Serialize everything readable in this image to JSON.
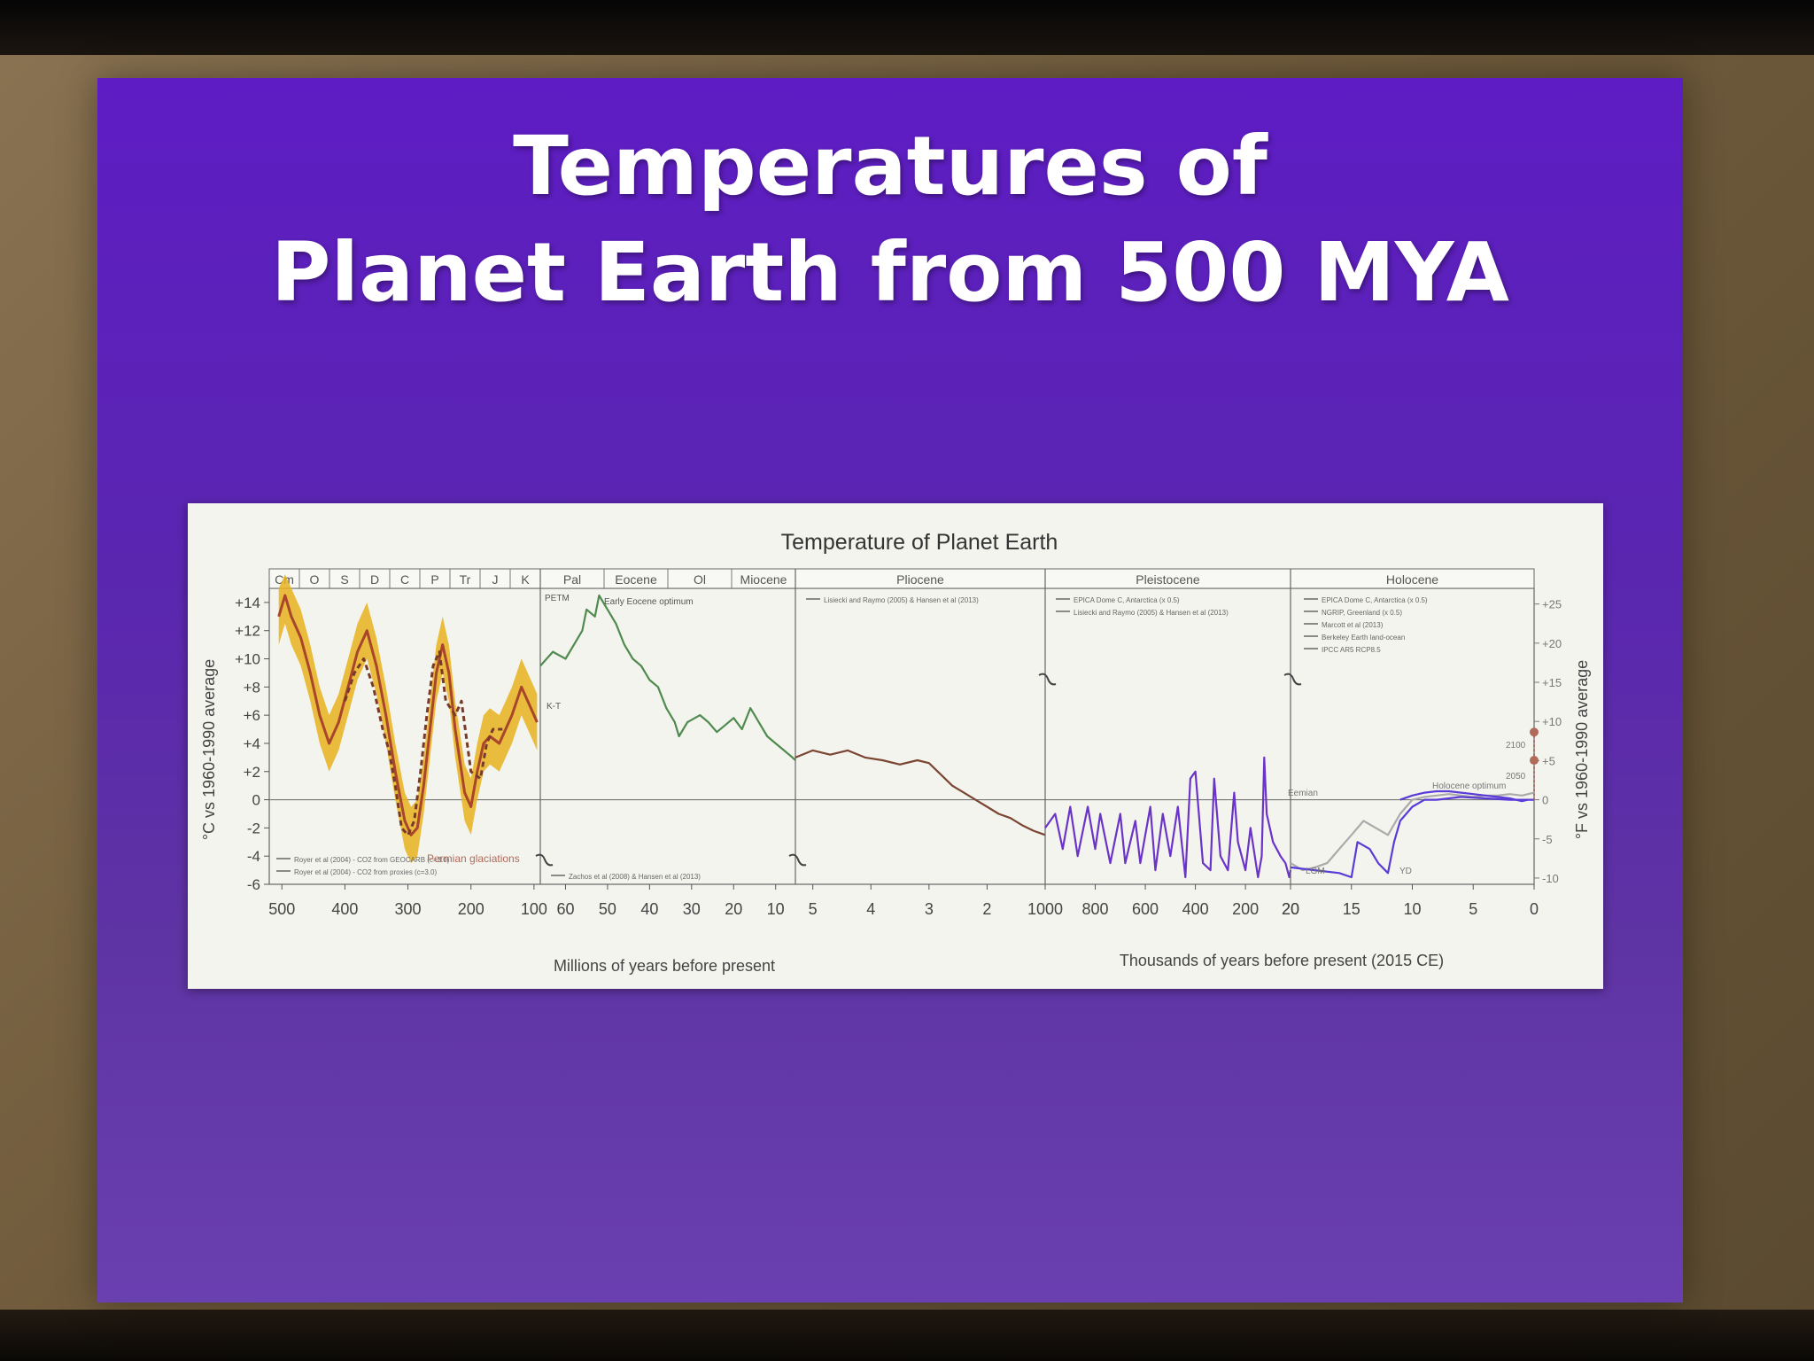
{
  "slide": {
    "title_line1": "Temperatures of",
    "title_line2": "Planet Earth from 500 MYA"
  },
  "colors": {
    "slide_bg": "#5e24bc",
    "paleozoic_line": "#a8452a",
    "paleozoic_band": "#e7b21e",
    "cenozoic_green": "#4f8a4f",
    "cenozoic_brown": "#7a4532",
    "pleistocene_purple": "#6a34c8",
    "holocene_blue": "#5a3bd8",
    "marker": "#b06a5a"
  },
  "chart_data": {
    "type": "line",
    "title": "Temperature of Planet Earth",
    "ylabel_left": "°C vs 1960-1990 average",
    "ylabel_right": "°F vs 1960-1990 average",
    "ylim_c": [
      -6,
      15
    ],
    "ylim_f": [
      -11,
      27
    ],
    "y_ticks_c": [
      "+14",
      "+12",
      "+10",
      "+8",
      "+6",
      "+4",
      "+2",
      "0",
      "-2",
      "-4",
      "-6"
    ],
    "y_ticks_f": [
      "+25",
      "+20",
      "+15",
      "+10",
      "+5",
      "0",
      "-5",
      "-10"
    ],
    "x_label_left": "Millions of years before present",
    "x_label_right": "Thousands of years before present (2015 CE)",
    "panels": [
      {
        "unit": "Ma",
        "x_ticks": [
          "500",
          "400",
          "300",
          "200",
          "100"
        ],
        "xlim": [
          520,
          90
        ],
        "periods": [
          "Cm",
          "O",
          "S",
          "D",
          "C",
          "P",
          "Tr",
          "J",
          "K"
        ],
        "annotations": [
          "Permian glaciations"
        ],
        "legend": [
          "Royer et al (2004) - CO2 from GEOCARB (c=3.0)",
          "Royer et al (2004) - CO2 from proxies (c=3.0)"
        ],
        "series": [
          {
            "name": "Royer et al (2004) - CO2 from GEOCARB (c=3.0)",
            "style": "solid",
            "x": [
              505,
              495,
              485,
              470,
              455,
              440,
              425,
              410,
              395,
              380,
              365,
              350,
              335,
              320,
              305,
              295,
              285,
              275,
              265,
              255,
              245,
              235,
              225,
              210,
              200,
              190,
              180,
              170,
              155,
              145,
              135,
              120,
              110,
              100,
              95
            ],
            "y": [
              13,
              14.5,
              13,
              11.5,
              9,
              6,
              4,
              5.5,
              8,
              10.5,
              12,
              9.5,
              6,
              2,
              -1.5,
              -2.5,
              -2,
              1,
              5,
              9,
              11,
              9,
              5,
              0.5,
              -0.5,
              2,
              4,
              4.5,
              4,
              5,
              6,
              8,
              7,
              6,
              5.5
            ],
            "band_low": [
              11,
              12.5,
              11,
              9.5,
              7,
              4,
              2,
              3.5,
              6,
              8.5,
              10,
              7.5,
              4,
              0,
              -3.5,
              -4.5,
              -4,
              -1,
              3,
              7,
              9,
              7,
              3,
              -1.5,
              -2.5,
              0,
              2,
              2.5,
              2,
              3,
              4,
              6,
              5,
              4,
              3.5
            ],
            "band_high": [
              15,
              16,
              15,
              13.5,
              11,
              8,
              6,
              7.5,
              10,
              12.5,
              14,
              11.5,
              8,
              4,
              0.5,
              -0.5,
              0,
              3,
              7,
              11,
              13,
              11,
              7,
              2.5,
              1.5,
              4,
              6,
              6.5,
              6,
              7,
              8,
              10,
              9,
              8,
              7.5
            ]
          },
          {
            "name": "Royer et al (2004) - CO2 from proxies (c=3.0)",
            "style": "dashed",
            "x": [
              400,
              385,
              370,
              355,
              340,
              330,
              320,
              310,
              300,
              290,
              280,
              270,
              260,
              250,
              240,
              225,
              215,
              200,
              185,
              175,
              165,
              150
            ],
            "y": [
              7,
              9,
              10,
              8,
              5,
              3.5,
              1,
              -2,
              -2.5,
              -1.5,
              2,
              6,
              9.5,
              10.5,
              7,
              6,
              7,
              2,
              1.5,
              4,
              5,
              5
            ]
          }
        ]
      },
      {
        "unit": "Ma",
        "x_ticks": [
          "60",
          "50",
          "40",
          "30",
          "20",
          "10"
        ],
        "xlim": [
          66,
          5.3
        ],
        "periods": [
          "Pal",
          "Eocene",
          "Ol",
          "Miocene"
        ],
        "annotations": [
          "PETM",
          "Early Eocene optimum",
          "K-T"
        ],
        "legend": [
          "Zachos et al (2008) & Hansen et al (2013)"
        ],
        "series": [
          {
            "name": "Zachos et al (2008) & Hansen et al (2013)",
            "x": [
              66,
              63,
              60,
              58,
              56,
              55,
              53,
              52,
              50,
              48,
              46,
              44,
              42,
              40,
              38,
              36,
              34,
              33,
              31,
              28,
              26,
              24,
              22,
              20,
              18,
              16,
              15,
              14,
              12,
              10,
              8,
              6,
              5.3
            ],
            "y": [
              9.5,
              10.5,
              10,
              11,
              12,
              13.5,
              13,
              14.5,
              13.5,
              12.5,
              11,
              10,
              9.5,
              8.5,
              8,
              6.5,
              5.5,
              4.5,
              5.5,
              6,
              5.5,
              4.8,
              5.3,
              5.8,
              5,
              6.5,
              6,
              5.5,
              4.5,
              4,
              3.5,
              3,
              2.8
            ]
          }
        ]
      },
      {
        "unit": "Ma",
        "x_ticks": [
          "5",
          "4",
          "3",
          "2"
        ],
        "xlim": [
          5.3,
          1.0
        ],
        "periods": [
          "Pliocene"
        ],
        "legend": [
          "Lisiecki and Raymo (2005) & Hansen et al (2013)"
        ],
        "series": [
          {
            "name": "Lisiecki and Raymo (2005) & Hansen et al (2013)",
            "x": [
              5.3,
              5.0,
              4.7,
              4.4,
              4.1,
              3.8,
              3.5,
              3.2,
              3.0,
              2.8,
              2.6,
              2.4,
              2.2,
              2.0,
              1.8,
              1.6,
              1.4,
              1.2,
              1.0
            ],
            "y": [
              3,
              3.5,
              3.2,
              3.5,
              3,
              2.8,
              2.5,
              2.8,
              2.6,
              1.8,
              1,
              0.5,
              0,
              -0.5,
              -1,
              -1.3,
              -1.8,
              -2.2,
              -2.5
            ]
          }
        ]
      },
      {
        "unit": "ka",
        "x_ticks": [
          "1000",
          "800",
          "600",
          "400",
          "200",
          "20"
        ],
        "xlim": [
          1000,
          20
        ],
        "periods": [
          "Pleistocene"
        ],
        "legend": [
          "EPICA Dome C, Antarctica (x 0.5)",
          "Lisiecki and Raymo (2005) & Hansen et al (2013)"
        ],
        "annotations": [
          "Eemian"
        ],
        "series": [
          {
            "name": "EPICA Dome C, Antarctica (x 0.5)",
            "x": [
              1000,
              960,
              930,
              900,
              870,
              830,
              800,
              780,
              740,
              700,
              680,
              640,
              620,
              580,
              560,
              530,
              500,
              470,
              440,
              420,
              400,
              370,
              340,
              325,
              300,
              270,
              245,
              230,
              200,
              180,
              150,
              135,
              125,
              115,
              90,
              60,
              40,
              25,
              20
            ],
            "y": [
              -2,
              -1,
              -3.5,
              -0.5,
              -4,
              -0.5,
              -3.5,
              -1,
              -4.5,
              -1,
              -4.5,
              -1.5,
              -4.5,
              -0.5,
              -5,
              -1,
              -4,
              -0.5,
              -5.5,
              1.5,
              2,
              -4.5,
              -5,
              1.5,
              -4,
              -5,
              0.5,
              -3,
              -5,
              -2,
              -5.5,
              -4,
              3,
              -1,
              -3,
              -4,
              -4.5,
              -5.5,
              -5
            ]
          }
        ]
      },
      {
        "unit": "ka",
        "x_ticks": [
          "20",
          "15",
          "10",
          "5",
          "0"
        ],
        "xlim": [
          20,
          0
        ],
        "periods": [
          "Holocene"
        ],
        "annotations": [
          "LGM",
          "YD",
          "Holocene optimum",
          "2100",
          "2050"
        ],
        "legend": [
          "EPICA Dome C, Antarctica (x 0.5)",
          "NGRIP, Greenland (x 0.5)",
          "Marcott et al (2013)",
          "Berkeley Earth land-ocean",
          "IPCC AR5 RCP8.5"
        ],
        "series": [
          {
            "name": "EPICA Dome C, Antarctica (x 0.5)",
            "x": [
              20,
              19,
              18,
              17,
              16,
              15,
              14,
              13,
              12,
              11,
              10,
              9,
              8,
              7,
              6,
              5,
              4,
              3,
              2,
              1,
              0
            ],
            "y": [
              -4.5,
              -5,
              -4.8,
              -4.5,
              -3.5,
              -2.5,
              -1.5,
              -2,
              -2.5,
              -1,
              0,
              0.2,
              0.3,
              0.4,
              0.3,
              0.2,
              0.3,
              0.3,
              0.4,
              0.3,
              0.5
            ]
          },
          {
            "name": "NGRIP, Greenland (x 0.5)",
            "x": [
              20,
              18,
              16,
              15,
              14.5,
              13.5,
              12.8,
              12,
              11.5,
              11,
              10,
              9,
              8,
              6,
              4,
              2,
              0
            ],
            "y": [
              -4.8,
              -5,
              -5.2,
              -5.5,
              -3,
              -3.5,
              -4.5,
              -5.2,
              -3,
              -1.5,
              -0.5,
              0,
              0,
              0.2,
              0.1,
              0,
              0
            ]
          },
          {
            "name": "Marcott et al (2013)",
            "x": [
              11,
              10,
              9,
              8,
              7,
              6,
              5,
              4,
              3,
              2,
              1,
              0.5
            ],
            "y": [
              0,
              0.3,
              0.5,
              0.6,
              0.6,
              0.5,
              0.4,
              0.3,
              0.2,
              0.1,
              -0.1,
              0
            ]
          },
          {
            "name": "IPCC AR5 RCP8.5",
            "x": [
              0,
              0,
              0
            ],
            "y": [
              0,
              2.8,
              4.8
            ]
          }
        ]
      }
    ]
  }
}
